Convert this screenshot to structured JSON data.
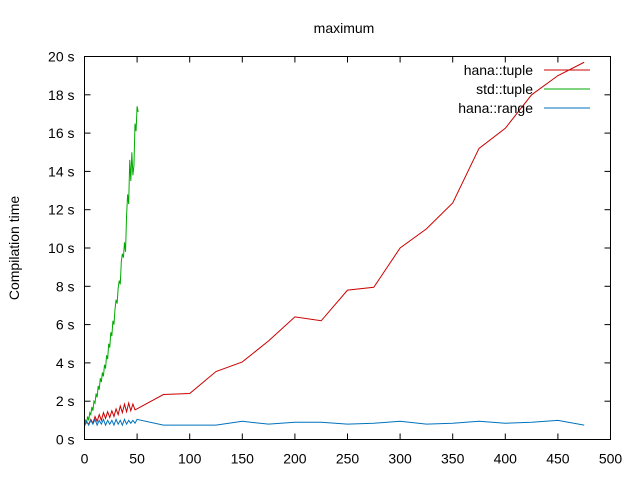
{
  "chart_data": {
    "type": "line",
    "title": "maximum",
    "xlabel": "",
    "ylabel": "Compilation time",
    "xlim": [
      0,
      500
    ],
    "ylim": [
      0,
      20
    ],
    "x_ticks": [
      0,
      50,
      100,
      150,
      200,
      250,
      300,
      350,
      400,
      450,
      500
    ],
    "y_ticks": [
      0,
      2,
      4,
      6,
      8,
      10,
      12,
      14,
      16,
      18,
      20
    ],
    "y_tick_labels": [
      "0 s",
      "2 s",
      "4 s",
      "6 s",
      "8 s",
      "10 s",
      "12 s",
      "14 s",
      "16 s",
      "18 s",
      "20 s"
    ],
    "grid": false,
    "legend_position": "top-right",
    "series": [
      {
        "name": "hana::tuple",
        "color": "#cc0000",
        "points": [
          [
            0,
            0.75
          ],
          [
            2,
            0.9
          ],
          [
            4,
            0.8
          ],
          [
            6,
            1.05
          ],
          [
            8,
            0.85
          ],
          [
            10,
            1.2
          ],
          [
            12,
            0.95
          ],
          [
            14,
            1.3
          ],
          [
            16,
            1.0
          ],
          [
            18,
            1.4
          ],
          [
            20,
            1.1
          ],
          [
            22,
            1.45
          ],
          [
            24,
            1.15
          ],
          [
            26,
            1.5
          ],
          [
            28,
            1.2
          ],
          [
            30,
            1.6
          ],
          [
            32,
            1.3
          ],
          [
            34,
            1.75
          ],
          [
            36,
            1.4
          ],
          [
            38,
            1.85
          ],
          [
            40,
            1.45
          ],
          [
            42,
            1.9
          ],
          [
            44,
            1.5
          ],
          [
            46,
            1.85
          ],
          [
            48,
            1.55
          ],
          [
            50,
            1.6
          ],
          [
            75,
            2.35
          ],
          [
            100,
            2.4
          ],
          [
            125,
            3.55
          ],
          [
            150,
            4.05
          ],
          [
            175,
            5.15
          ],
          [
            200,
            6.4
          ],
          [
            225,
            6.2
          ],
          [
            250,
            7.8
          ],
          [
            275,
            7.95
          ],
          [
            300,
            10.0
          ],
          [
            325,
            11.0
          ],
          [
            350,
            12.35
          ],
          [
            375,
            15.2
          ],
          [
            400,
            16.25
          ],
          [
            425,
            18.0
          ],
          [
            450,
            19.0
          ],
          [
            475,
            19.7
          ]
        ]
      },
      {
        "name": "std::tuple",
        "color": "#00aa00",
        "points": [
          [
            0,
            0.8
          ],
          [
            1,
            1.0
          ],
          [
            2,
            0.9
          ],
          [
            3,
            1.2
          ],
          [
            4,
            1.0
          ],
          [
            5,
            1.4
          ],
          [
            6,
            1.3
          ],
          [
            7,
            1.7
          ],
          [
            8,
            1.5
          ],
          [
            9,
            2.0
          ],
          [
            10,
            1.9
          ],
          [
            11,
            2.4
          ],
          [
            12,
            2.2
          ],
          [
            13,
            2.8
          ],
          [
            14,
            2.6
          ],
          [
            15,
            3.2
          ],
          [
            16,
            3.0
          ],
          [
            17,
            3.5
          ],
          [
            18,
            3.3
          ],
          [
            19,
            3.9
          ],
          [
            20,
            3.7
          ],
          [
            21,
            4.4
          ],
          [
            22,
            4.2
          ],
          [
            23,
            5.0
          ],
          [
            24,
            4.8
          ],
          [
            25,
            5.6
          ],
          [
            26,
            5.4
          ],
          [
            27,
            6.2
          ],
          [
            28,
            6.0
          ],
          [
            29,
            6.8
          ],
          [
            30,
            7.3
          ],
          [
            31,
            7.1
          ],
          [
            32,
            7.9
          ],
          [
            33,
            8.3
          ],
          [
            34,
            8.1
          ],
          [
            35,
            9.3
          ],
          [
            36,
            9.7
          ],
          [
            37,
            9.5
          ],
          [
            38,
            10.3
          ],
          [
            39,
            9.8
          ],
          [
            40,
            11.7
          ],
          [
            41,
            12.8
          ],
          [
            42,
            12.3
          ],
          [
            43,
            14.6
          ],
          [
            44,
            13.5
          ],
          [
            45,
            15.0
          ],
          [
            46,
            13.8
          ],
          [
            47,
            14.3
          ],
          [
            48,
            16.5
          ],
          [
            49,
            16.1
          ],
          [
            50,
            17.4
          ],
          [
            51,
            17.1
          ]
        ]
      },
      {
        "name": "hana::range",
        "color": "#0072bd",
        "points": [
          [
            0,
            0.7
          ],
          [
            2,
            0.95
          ],
          [
            4,
            0.75
          ],
          [
            6,
            1.0
          ],
          [
            8,
            0.8
          ],
          [
            10,
            1.05
          ],
          [
            12,
            0.75
          ],
          [
            14,
            1.0
          ],
          [
            16,
            0.8
          ],
          [
            18,
            1.05
          ],
          [
            20,
            0.75
          ],
          [
            22,
            1.0
          ],
          [
            24,
            0.8
          ],
          [
            26,
            1.0
          ],
          [
            28,
            0.75
          ],
          [
            30,
            1.05
          ],
          [
            32,
            0.8
          ],
          [
            34,
            1.0
          ],
          [
            36,
            0.75
          ],
          [
            38,
            1.05
          ],
          [
            40,
            0.8
          ],
          [
            42,
            1.0
          ],
          [
            44,
            0.85
          ],
          [
            46,
            1.0
          ],
          [
            48,
            0.85
          ],
          [
            50,
            1.05
          ],
          [
            75,
            0.75
          ],
          [
            100,
            0.75
          ],
          [
            125,
            0.75
          ],
          [
            150,
            0.95
          ],
          [
            175,
            0.8
          ],
          [
            200,
            0.9
          ],
          [
            225,
            0.9
          ],
          [
            250,
            0.8
          ],
          [
            275,
            0.85
          ],
          [
            300,
            0.95
          ],
          [
            325,
            0.8
          ],
          [
            350,
            0.85
          ],
          [
            375,
            0.95
          ],
          [
            400,
            0.85
          ],
          [
            425,
            0.9
          ],
          [
            450,
            1.0
          ],
          [
            475,
            0.75
          ]
        ]
      }
    ]
  }
}
